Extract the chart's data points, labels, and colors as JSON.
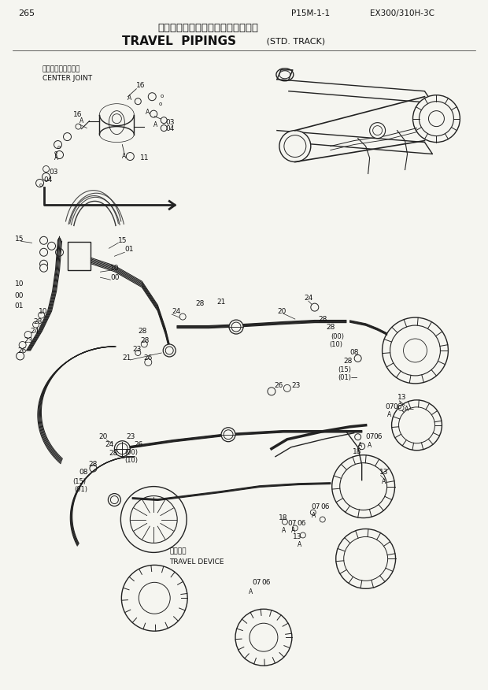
{
  "page_number": "265",
  "top_right_code": "P15M-1-1",
  "top_right_model": "EX300/310H-3C",
  "title_japanese": "走行配管（スタンダードトラック）",
  "title_english_main": "TRAVEL  PIPINGS",
  "title_english_sub": " (STD. TRACK)",
  "label_cj_jp": "センタージョイント",
  "label_cj_en": "CENTER JOINT",
  "label_td_jp": "走行装置",
  "label_td_en": "TRAVEL DEVICE",
  "bg_color": "#f5f5f0",
  "line_color": "#222222",
  "text_color": "#111111",
  "fig_w": 6.2,
  "fig_h": 8.76,
  "dpi": 100
}
